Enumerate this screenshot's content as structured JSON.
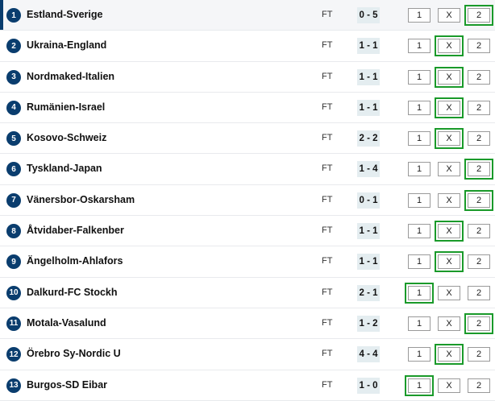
{
  "labels": {
    "one": "1",
    "x": "X",
    "two": "2"
  },
  "colors": {
    "accent": "#0a3d6e",
    "selected": "#1a9a2a"
  },
  "matches": [
    {
      "num": "1",
      "name": "Estland-Sverige",
      "status": "FT",
      "score": "0 - 5",
      "selected": "2"
    },
    {
      "num": "2",
      "name": "Ukraina-England",
      "status": "FT",
      "score": "1 - 1",
      "selected": "X"
    },
    {
      "num": "3",
      "name": "Nordmaked-Italien",
      "status": "FT",
      "score": "1 - 1",
      "selected": "X"
    },
    {
      "num": "4",
      "name": "Rumänien-Israel",
      "status": "FT",
      "score": "1 - 1",
      "selected": "X"
    },
    {
      "num": "5",
      "name": "Kosovo-Schweiz",
      "status": "FT",
      "score": "2 - 2",
      "selected": "X"
    },
    {
      "num": "6",
      "name": "Tyskland-Japan",
      "status": "FT",
      "score": "1 - 4",
      "selected": "2"
    },
    {
      "num": "7",
      "name": "Vänersbor-Oskarsham",
      "status": "FT",
      "score": "0 - 1",
      "selected": "2"
    },
    {
      "num": "8",
      "name": "Åtvidaber-Falkenber",
      "status": "FT",
      "score": "1 - 1",
      "selected": "X"
    },
    {
      "num": "9",
      "name": "Ängelholm-Ahlafors",
      "status": "FT",
      "score": "1 - 1",
      "selected": "X"
    },
    {
      "num": "10",
      "name": "Dalkurd-FC Stockh",
      "status": "FT",
      "score": "2 - 1",
      "selected": "1"
    },
    {
      "num": "11",
      "name": "Motala-Vasalund",
      "status": "FT",
      "score": "1 - 2",
      "selected": "2"
    },
    {
      "num": "12",
      "name": "Örebro Sy-Nordic U",
      "status": "FT",
      "score": "4 - 4",
      "selected": "X"
    },
    {
      "num": "13",
      "name": "Burgos-SD Eibar",
      "status": "FT",
      "score": "1 - 0",
      "selected": "1"
    }
  ]
}
